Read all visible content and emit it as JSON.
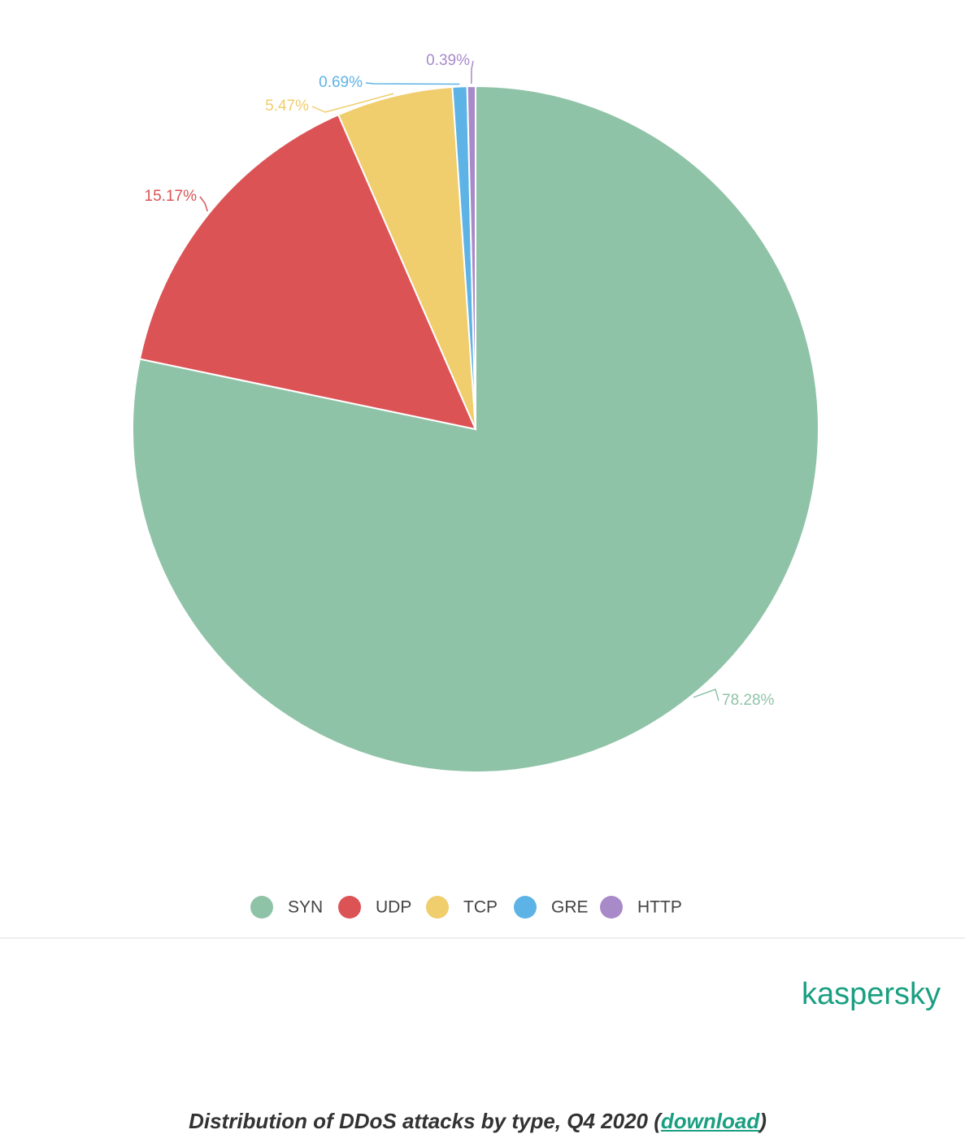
{
  "chart_data": {
    "type": "pie",
    "categories": [
      "SYN",
      "UDP",
      "TCP",
      "GRE",
      "HTTP"
    ],
    "values": [
      78.28,
      15.17,
      5.47,
      0.69,
      0.39
    ],
    "value_labels": [
      "78.28%",
      "15.17%",
      "5.47%",
      "0.69%",
      "0.39%"
    ],
    "colors": [
      "#8fc3a7",
      "#dc5356",
      "#f0cd6d",
      "#5db3e6",
      "#a98ac9"
    ],
    "legend": "bottom"
  },
  "logo": "kaspersky",
  "caption": {
    "before": "Distribution of DDoS attacks by type, Q4 2020 (",
    "link": "download",
    "after": ")"
  }
}
